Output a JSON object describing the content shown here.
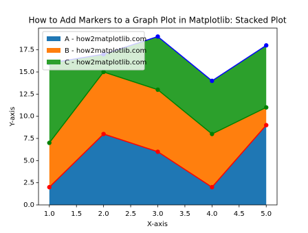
{
  "chart_data": {
    "type": "stackplot",
    "title": "How to Add Markers to a Graph Plot in Matplotlib: Stacked Plot",
    "x_label": "X-axis",
    "y_label": "Y-axis",
    "x": [
      1,
      2,
      3,
      4,
      5
    ],
    "series": [
      {
        "name": "A - how2matplotlib.com",
        "color": "#1f77b4",
        "line_color": "#ff0000",
        "values": [
          2,
          8,
          6,
          2,
          9
        ]
      },
      {
        "name": "B - how2matplotlib.com",
        "color": "#ff7f0e",
        "line_color": "#008000",
        "values": [
          5,
          7,
          7,
          6,
          2
        ]
      },
      {
        "name": "C - how2matplotlib.com",
        "color": "#2ca02c",
        "line_color": "#0000ff",
        "values": [
          9,
          2,
          6,
          6,
          7
        ]
      }
    ],
    "xlim": [
      0.8,
      5.2
    ],
    "xticks": [
      {
        "value": 1,
        "label": "1.0"
      },
      {
        "value": 1.5,
        "label": "1.5"
      },
      {
        "value": 2,
        "label": "2.0"
      },
      {
        "value": 2.5,
        "label": "2.5"
      },
      {
        "value": 3,
        "label": "3.0"
      },
      {
        "value": 3.5,
        "label": "3.5"
      },
      {
        "value": 4,
        "label": "4.0"
      },
      {
        "value": 4.5,
        "label": "4.5"
      },
      {
        "value": 5,
        "label": "5.0"
      }
    ],
    "ylim": [
      0,
      19.95
    ],
    "yticks": [
      {
        "value": 0,
        "label": "0.0"
      },
      {
        "value": 2.5,
        "label": "2.5"
      },
      {
        "value": 5,
        "label": "5.0"
      },
      {
        "value": 7.5,
        "label": "7.5"
      },
      {
        "value": 10,
        "label": "10.0"
      },
      {
        "value": 12.5,
        "label": "12.5"
      },
      {
        "value": 15,
        "label": "15.0"
      },
      {
        "value": 17.5,
        "label": "17.5"
      }
    ],
    "legend": "upper left"
  }
}
